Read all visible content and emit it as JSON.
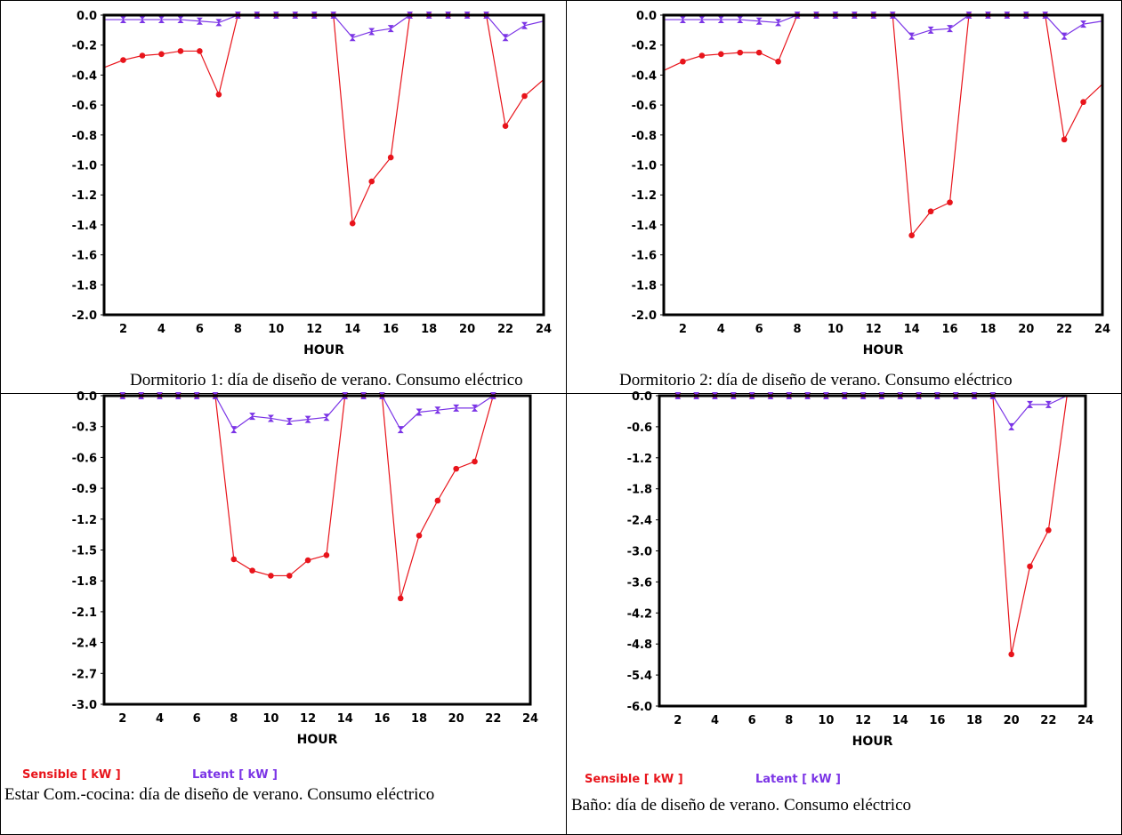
{
  "colors": {
    "sensible": "#e8141b",
    "latent": "#7b34e6"
  },
  "legend": {
    "sensible": "Sensible [ kW ]",
    "latent": "Latent [ kW ]"
  },
  "captions": {
    "c1": "Dormitorio 1: día de diseño de verano. Consumo eléctrico",
    "c2": "Dormitorio 2: día de diseño de verano. Consumo eléctrico",
    "c3": "Estar Com.-cocina: día de diseño de verano. Consumo eléctrico",
    "c4": "Baño: día de diseño de verano. Consumo eléctrico"
  },
  "chart_data": [
    {
      "type": "line",
      "xlabel": "HOUR",
      "xlim": [
        1,
        24
      ],
      "x_ticks": [
        2,
        4,
        6,
        8,
        10,
        12,
        14,
        16,
        18,
        20,
        22,
        24
      ],
      "ylim": [
        -2.0,
        0.0
      ],
      "y_ticks": [
        "0.0",
        "-0.2",
        "-0.4",
        "-0.6",
        "-0.8",
        "-1.0",
        "-1.2",
        "-1.4",
        "-1.6",
        "-1.8",
        "-2.0"
      ],
      "x": [
        1,
        2,
        3,
        4,
        5,
        6,
        7,
        8,
        9,
        10,
        11,
        12,
        13,
        14,
        15,
        16,
        17,
        18,
        19,
        20,
        21,
        22,
        23,
        24
      ],
      "series": [
        {
          "name": "Sensible [ kW ]",
          "values": [
            -0.35,
            -0.3,
            -0.27,
            -0.26,
            -0.24,
            -0.24,
            -0.53,
            0,
            0,
            0,
            0,
            0,
            0,
            -1.39,
            -1.11,
            -0.95,
            0,
            0,
            0,
            0,
            0,
            -0.74,
            -0.54,
            -0.43
          ]
        },
        {
          "name": "Latent [ kW ]",
          "values": [
            -0.03,
            -0.03,
            -0.03,
            -0.03,
            -0.03,
            -0.04,
            -0.05,
            0,
            0,
            0,
            0,
            0,
            0,
            -0.15,
            -0.11,
            -0.09,
            0,
            0,
            0,
            0,
            0,
            -0.15,
            -0.07,
            -0.04
          ]
        }
      ]
    },
    {
      "type": "line",
      "xlabel": "HOUR",
      "xlim": [
        1,
        24
      ],
      "x_ticks": [
        2,
        4,
        6,
        8,
        10,
        12,
        14,
        16,
        18,
        20,
        22,
        24
      ],
      "ylim": [
        -2.0,
        0.0
      ],
      "y_ticks": [
        "0.0",
        "-0.2",
        "-0.4",
        "-0.6",
        "-0.8",
        "-1.0",
        "-1.2",
        "-1.4",
        "-1.6",
        "-1.8",
        "-2.0"
      ],
      "x": [
        1,
        2,
        3,
        4,
        5,
        6,
        7,
        8,
        9,
        10,
        11,
        12,
        13,
        14,
        15,
        16,
        17,
        18,
        19,
        20,
        21,
        22,
        23,
        24
      ],
      "series": [
        {
          "name": "Sensible [ kW ]",
          "values": [
            -0.37,
            -0.31,
            -0.27,
            -0.26,
            -0.25,
            -0.25,
            -0.31,
            0,
            0,
            0,
            0,
            0,
            0,
            -1.47,
            -1.31,
            -1.25,
            0,
            0,
            0,
            0,
            0,
            -0.83,
            -0.58,
            -0.46
          ]
        },
        {
          "name": "Latent [ kW ]",
          "values": [
            -0.03,
            -0.03,
            -0.03,
            -0.03,
            -0.03,
            -0.04,
            -0.05,
            0,
            0,
            0,
            0,
            0,
            0,
            -0.14,
            -0.1,
            -0.09,
            0,
            0,
            0,
            0,
            0,
            -0.14,
            -0.06,
            -0.04
          ]
        }
      ]
    },
    {
      "type": "line",
      "xlabel": "HOUR",
      "xlim": [
        1,
        24
      ],
      "x_ticks": [
        2,
        4,
        6,
        8,
        10,
        12,
        14,
        16,
        18,
        20,
        22,
        24
      ],
      "ylim": [
        -3.0,
        0.0
      ],
      "y_ticks": [
        "0.0",
        "-0.3",
        "-0.6",
        "-0.9",
        "-1.2",
        "-1.5",
        "-1.8",
        "-2.1",
        "-2.4",
        "-2.7",
        "-3.0"
      ],
      "x": [
        1,
        2,
        3,
        4,
        5,
        6,
        7,
        8,
        9,
        10,
        11,
        12,
        13,
        14,
        15,
        16,
        17,
        18,
        19,
        20,
        21,
        22,
        23
      ],
      "series": [
        {
          "name": "Sensible [ kW ]",
          "values": [
            0,
            0,
            0,
            0,
            0,
            0,
            0,
            -1.59,
            -1.7,
            -1.75,
            -1.75,
            -1.6,
            -1.55,
            0,
            0,
            0,
            -1.97,
            -1.36,
            -1.02,
            -0.71,
            -0.64,
            0,
            0
          ]
        },
        {
          "name": "Latent [ kW ]",
          "values": [
            0,
            0,
            0,
            0,
            0,
            0,
            0,
            -0.33,
            -0.2,
            -0.22,
            -0.25,
            -0.23,
            -0.21,
            0,
            0,
            0,
            -0.33,
            -0.16,
            -0.14,
            -0.12,
            -0.12,
            0,
            0
          ]
        }
      ]
    },
    {
      "type": "line",
      "xlabel": "HOUR",
      "xlim": [
        1,
        24
      ],
      "x_ticks": [
        2,
        4,
        6,
        8,
        10,
        12,
        14,
        16,
        18,
        20,
        22,
        24
      ],
      "ylim": [
        -6.0,
        0.0
      ],
      "y_ticks": [
        "0.0",
        "-0.6",
        "-1.2",
        "-1.8",
        "-2.4",
        "-3.0",
        "-3.6",
        "-4.2",
        "-4.8",
        "-5.4",
        "-6.0"
      ],
      "x": [
        1,
        2,
        3,
        4,
        5,
        6,
        7,
        8,
        9,
        10,
        11,
        12,
        13,
        14,
        15,
        16,
        17,
        18,
        19,
        20,
        21,
        22,
        23
      ],
      "series": [
        {
          "name": "Sensible [ kW ]",
          "values": [
            0,
            0,
            0,
            0,
            0,
            0,
            0,
            0,
            0,
            0,
            0,
            0,
            0,
            0,
            0,
            0,
            0,
            0,
            0,
            -5.0,
            -3.3,
            -2.6,
            0
          ]
        },
        {
          "name": "Latent [ kW ]",
          "values": [
            0,
            0,
            0,
            0,
            0,
            0,
            0,
            0,
            0,
            0,
            0,
            0,
            0,
            0,
            0,
            0,
            0,
            0,
            0,
            -0.6,
            -0.17,
            -0.17,
            0
          ]
        }
      ]
    }
  ]
}
